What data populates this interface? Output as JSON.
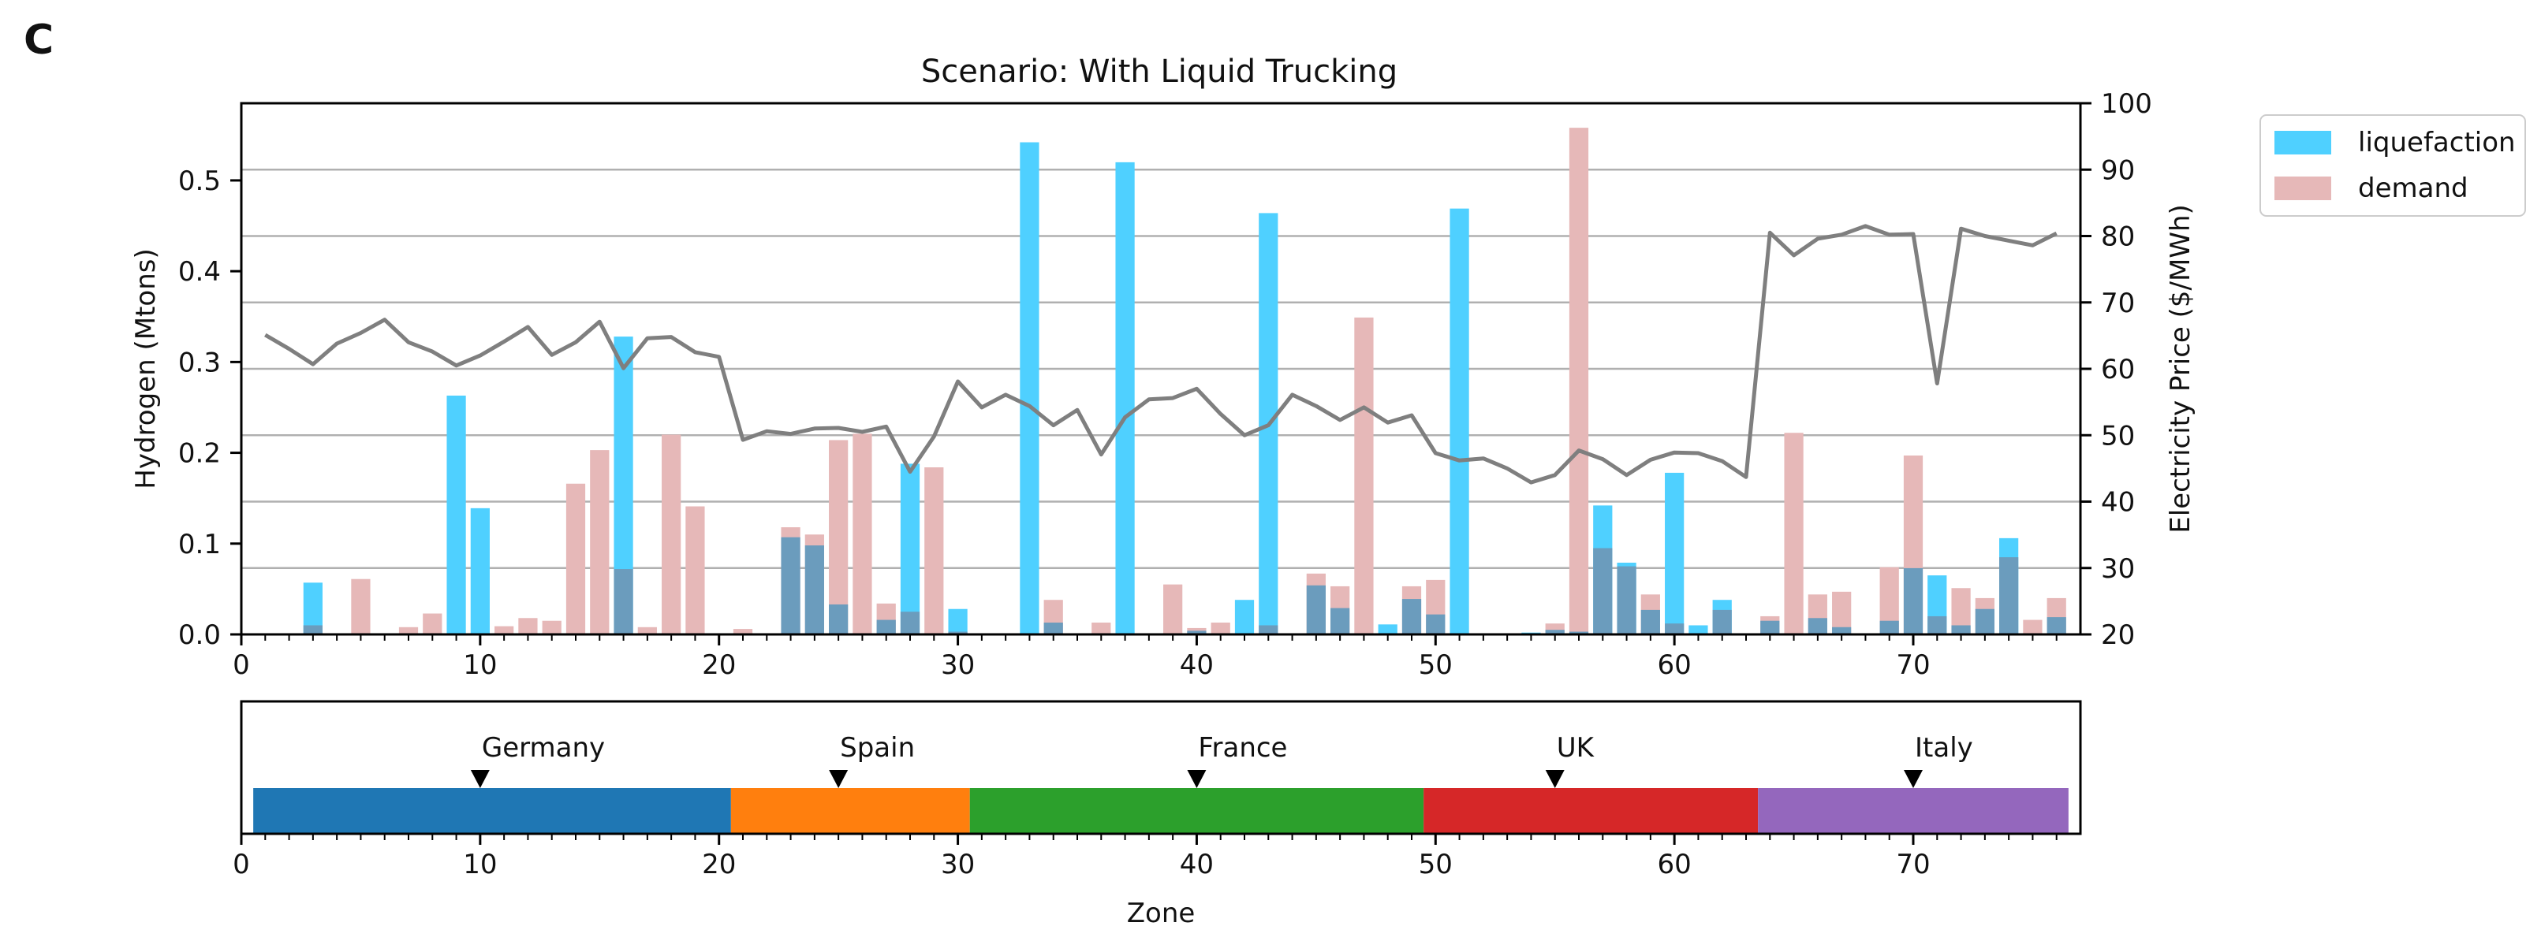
{
  "panel_label": "C",
  "chart_data": [
    {
      "type": "bar",
      "title": "Scenario: With Liquid Trucking",
      "xlabel": "",
      "ylabel": "Hydrogen (Mtons)",
      "y2label": "Electricity Price ($/MWh)",
      "xlim": [
        0,
        77
      ],
      "ylim": [
        0,
        0.585
      ],
      "y2lim": [
        20,
        100
      ],
      "x_ticks": [
        0,
        10,
        20,
        30,
        40,
        50,
        60,
        70
      ],
      "y_ticks": [
        0.0,
        0.1,
        0.2,
        0.3,
        0.4,
        0.5
      ],
      "y2_ticks": [
        20,
        30,
        40,
        50,
        60,
        70,
        80,
        90,
        100
      ],
      "grid": "horizontal on right axis ticks",
      "legend_position": "outside-right-top",
      "colors": {
        "liquefaction": "#4fd0ff",
        "demand": "#e6b8b8",
        "overlap": "#6b9cbd",
        "price": "#7f7f7f"
      },
      "zones": [
        1,
        2,
        3,
        4,
        5,
        6,
        7,
        8,
        9,
        10,
        11,
        12,
        13,
        14,
        15,
        16,
        17,
        18,
        19,
        20,
        21,
        22,
        23,
        24,
        25,
        26,
        27,
        28,
        29,
        30,
        31,
        32,
        33,
        34,
        35,
        36,
        37,
        38,
        39,
        40,
        41,
        42,
        43,
        44,
        45,
        46,
        47,
        48,
        49,
        50,
        51,
        52,
        53,
        54,
        55,
        56,
        57,
        58,
        59,
        60,
        61,
        62,
        63,
        64,
        65,
        66,
        67,
        68,
        69,
        70,
        71,
        72,
        73,
        74,
        75,
        76
      ],
      "series": [
        {
          "name": "liquefaction",
          "axis": "left",
          "values": [
            0,
            0,
            0.057,
            0,
            0,
            0,
            0,
            0,
            0.263,
            0.139,
            0,
            0,
            0,
            0,
            0,
            0.328,
            0,
            0,
            0,
            0,
            0,
            0,
            0.107,
            0.098,
            0.033,
            0,
            0.016,
            0.188,
            0,
            0.028,
            0,
            0,
            0.542,
            0.013,
            0,
            0,
            0.52,
            0,
            0,
            0.004,
            0,
            0.038,
            0.464,
            0,
            0.054,
            0.029,
            0,
            0.011,
            0.039,
            0.022,
            0.469,
            0,
            0,
            0.002,
            0.005,
            0.003,
            0.142,
            0.079,
            0.027,
            0.178,
            0.01,
            0.038,
            0,
            0.015,
            0,
            0.018,
            0.008,
            0,
            0.015,
            0.073,
            0.065,
            0.01,
            0.028,
            0.106,
            0,
            0.019
          ]
        },
        {
          "name": "demand",
          "axis": "left",
          "values": [
            0,
            0,
            0.01,
            0,
            0.061,
            0,
            0.008,
            0.023,
            0,
            0,
            0.009,
            0.018,
            0.015,
            0.166,
            0.203,
            0.072,
            0.008,
            0.22,
            0.141,
            0,
            0.006,
            0,
            0.118,
            0.11,
            0.214,
            0.221,
            0.034,
            0.025,
            0.184,
            0.003,
            0,
            0,
            0,
            0.038,
            0,
            0.013,
            0,
            0,
            0.055,
            0.007,
            0.013,
            0,
            0.01,
            0,
            0.067,
            0.053,
            0.349,
            0,
            0.053,
            0.06,
            0,
            0,
            0,
            0,
            0.012,
            0.558,
            0.095,
            0.075,
            0.044,
            0.012,
            0,
            0.027,
            0,
            0.02,
            0.222,
            0.044,
            0.047,
            0,
            0.074,
            0.197,
            0.02,
            0.051,
            0.04,
            0.085,
            0.016,
            0.04
          ]
        },
        {
          "name": "",
          "type": "line",
          "axis": "right",
          "values": [
            65.1,
            63.0,
            60.7,
            63.8,
            65.4,
            67.4,
            64.0,
            62.6,
            60.5,
            62.0,
            64.1,
            66.3,
            62.1,
            64.0,
            67.1,
            60.1,
            64.6,
            64.8,
            62.5,
            61.8,
            49.3,
            50.6,
            50.2,
            51.0,
            51.1,
            50.5,
            51.3,
            44.5,
            49.8,
            58.1,
            54.2,
            56.1,
            54.4,
            51.5,
            53.8,
            47.1,
            52.7,
            55.4,
            55.6,
            57.0,
            53.2,
            50.0,
            51.5,
            56.1,
            54.4,
            52.3,
            54.2,
            51.9,
            53.0,
            47.3,
            46.2,
            46.5,
            45.0,
            42.9,
            44.0,
            47.7,
            46.4,
            44.0,
            46.3,
            47.4,
            47.3,
            46.1,
            43.7,
            80.5,
            77.1,
            79.6,
            80.2,
            81.5,
            80.2,
            80.3,
            57.8,
            81.1,
            80.0,
            79.3,
            78.6,
            80.4
          ]
        }
      ]
    },
    {
      "type": "bar",
      "xlabel": "Zone",
      "xlim": [
        0,
        77
      ],
      "x_ticks": [
        0,
        10,
        20,
        30,
        40,
        50,
        60,
        70
      ],
      "countries": [
        {
          "name": "Germany",
          "start": 0.5,
          "end": 20.5,
          "marker": 10,
          "color": "#1f77b4"
        },
        {
          "name": "Spain",
          "start": 20.5,
          "end": 30.5,
          "marker": 25,
          "color": "#ff7f0e"
        },
        {
          "name": "France",
          "start": 30.5,
          "end": 49.5,
          "marker": 40,
          "color": "#2ca02c"
        },
        {
          "name": "UK",
          "start": 49.5,
          "end": 63.5,
          "marker": 55,
          "color": "#d62728"
        },
        {
          "name": "Italy",
          "start": 63.5,
          "end": 76.5,
          "marker": 70,
          "color": "#9467bd"
        }
      ]
    }
  ]
}
